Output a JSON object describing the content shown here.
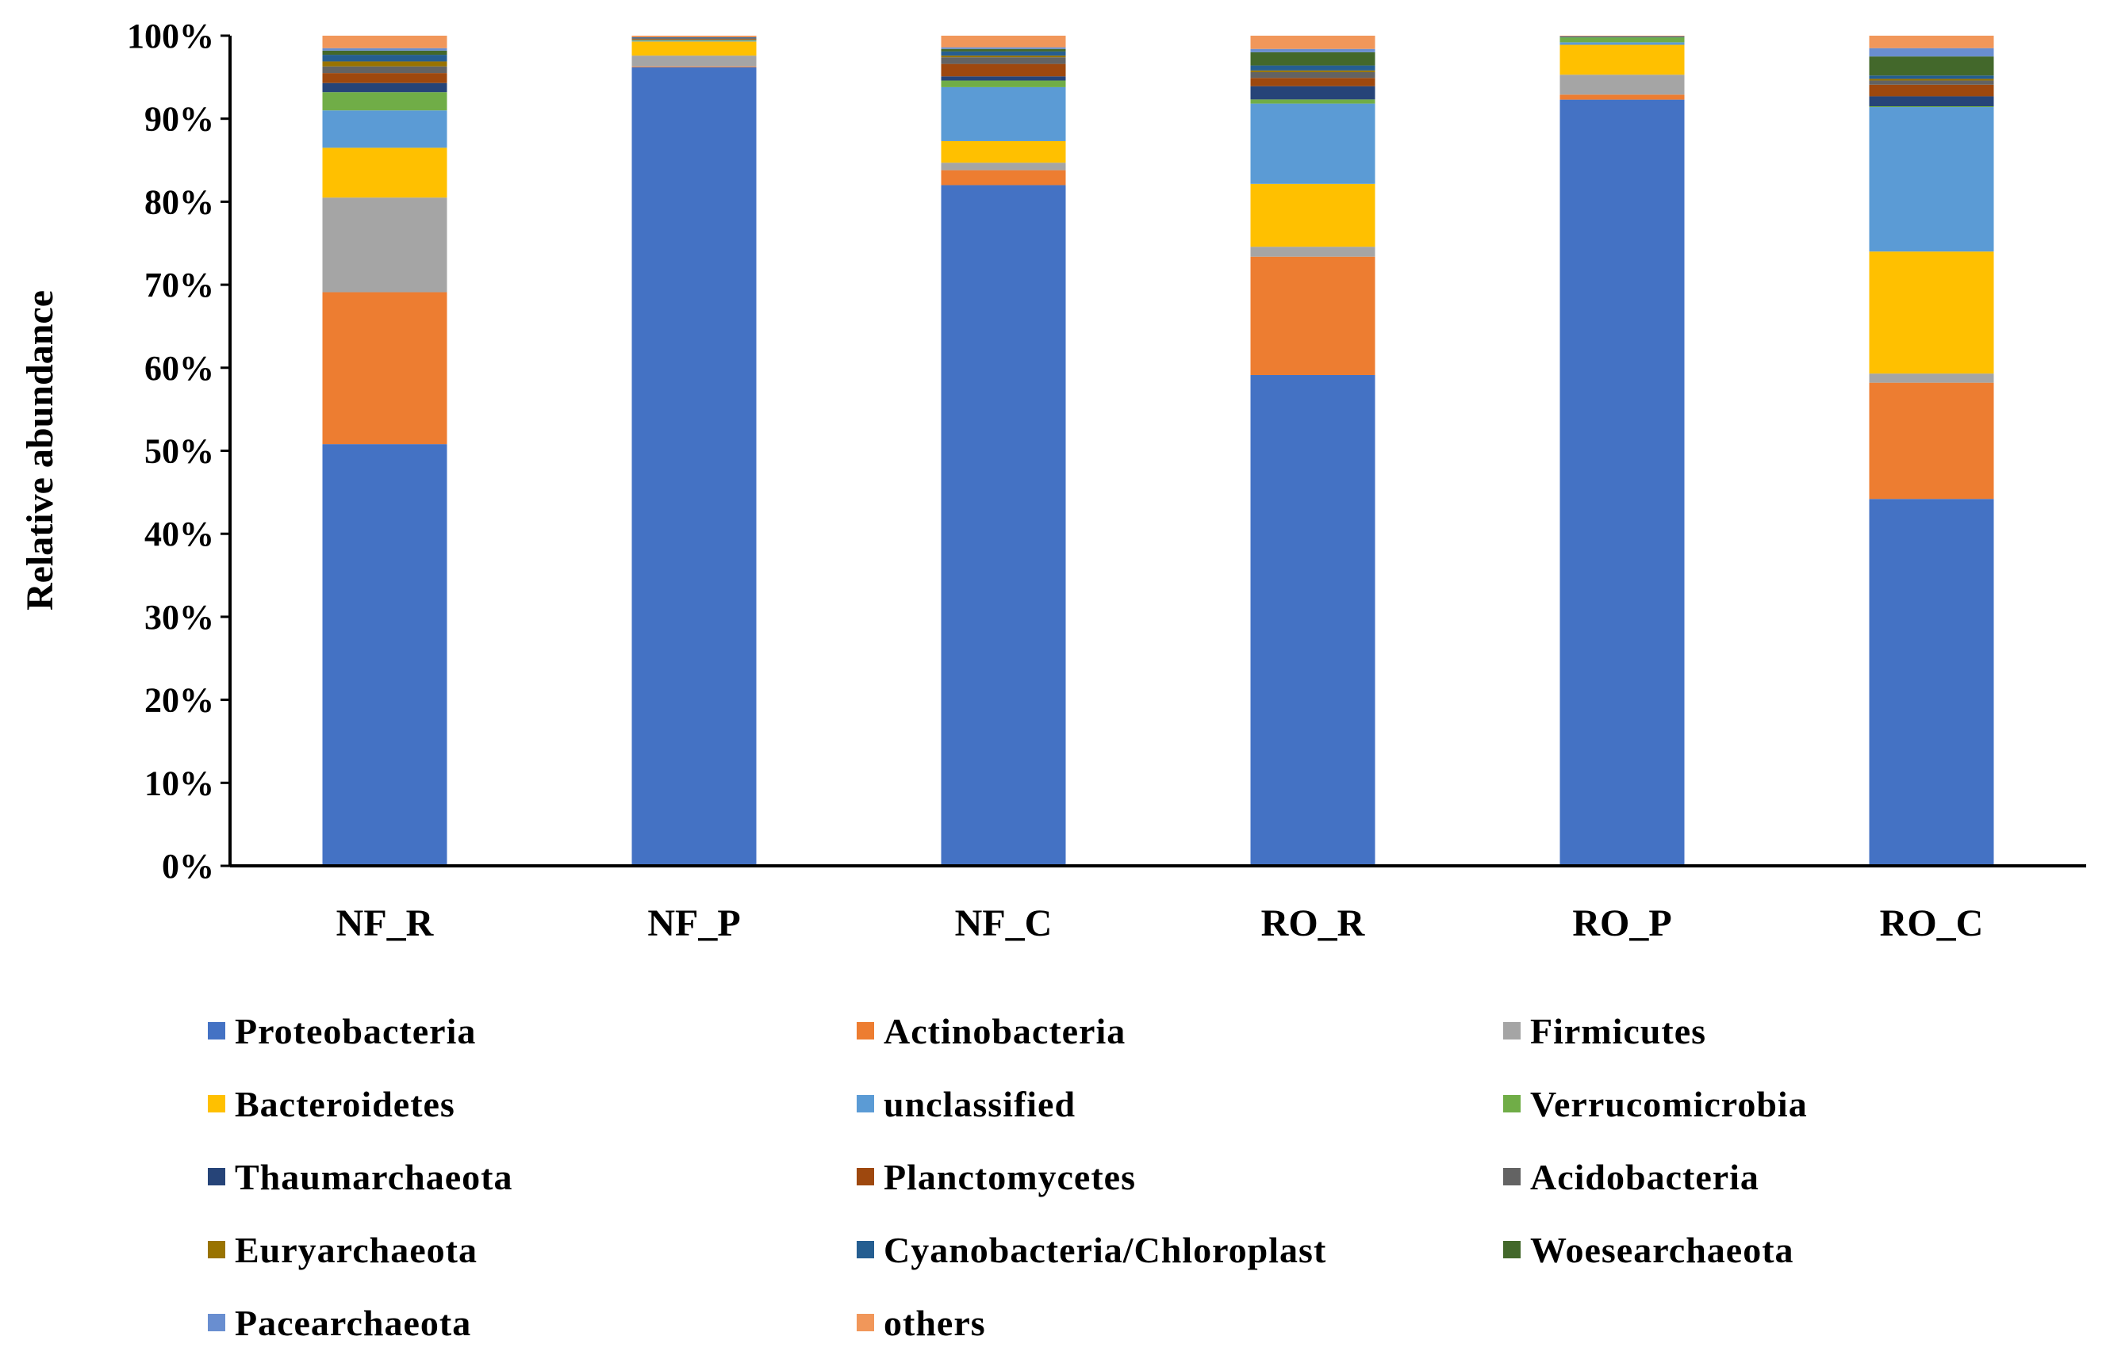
{
  "chart_data": {
    "type": "bar",
    "stacked": true,
    "percent": true,
    "title": "",
    "xlabel": "",
    "ylabel": "Relative abundance",
    "ylim": [
      0,
      100
    ],
    "yticks": [
      "0%",
      "10%",
      "20%",
      "30%",
      "40%",
      "50%",
      "60%",
      "70%",
      "80%",
      "90%",
      "100%"
    ],
    "categories": [
      "NF_R",
      "NF_P",
      "NF_C",
      "RO_R",
      "RO_P",
      "RO_C"
    ],
    "legend_position": "bottom",
    "series": [
      {
        "name": "Proteobacteria",
        "color": "#4472C4",
        "values": [
          50.8,
          96.2,
          82.0,
          59.3,
          92.3,
          44.2
        ]
      },
      {
        "name": "Actinobacteria",
        "color": "#ED7D31",
        "values": [
          18.3,
          0.1,
          1.8,
          14.3,
          0.6,
          14.0
        ]
      },
      {
        "name": "Firmicutes",
        "color": "#A5A5A5",
        "values": [
          11.4,
          1.3,
          0.9,
          1.2,
          2.4,
          1.1
        ]
      },
      {
        "name": "Bacteroidetes",
        "color": "#FFC000",
        "values": [
          6.0,
          1.7,
          2.6,
          7.6,
          3.6,
          14.7
        ]
      },
      {
        "name": "unclassified",
        "color": "#5B9BD5",
        "values": [
          4.5,
          0.1,
          6.5,
          9.7,
          0.3,
          17.4
        ]
      },
      {
        "name": "Verrucomicrobia",
        "color": "#70AD47",
        "values": [
          2.2,
          0.1,
          0.8,
          0.5,
          0.6,
          0.1
        ]
      },
      {
        "name": "Thaumarchaeota",
        "color": "#264478",
        "values": [
          1.1,
          0.0,
          0.5,
          1.6,
          0.0,
          1.2
        ]
      },
      {
        "name": "Planctomycetes",
        "color": "#9E480E",
        "values": [
          1.2,
          0.1,
          1.5,
          1.0,
          0.0,
          1.4
        ]
      },
      {
        "name": "Acidobacteria",
        "color": "#636363",
        "values": [
          0.8,
          0.1,
          0.8,
          0.7,
          0.0,
          0.5
        ]
      },
      {
        "name": "Euryarchaeota",
        "color": "#997300",
        "values": [
          0.6,
          0.0,
          0.2,
          0.2,
          0.0,
          0.2
        ]
      },
      {
        "name": "Cyanobacteria/Chloroplast",
        "color": "#255E91",
        "values": [
          0.8,
          0.1,
          0.5,
          0.6,
          0.1,
          0.4
        ]
      },
      {
        "name": "Woesearchaeota",
        "color": "#43682B",
        "values": [
          0.5,
          0.0,
          0.3,
          1.6,
          0.0,
          2.3
        ]
      },
      {
        "name": "Pacearchaeota",
        "color": "#698ED0",
        "values": [
          0.3,
          0.0,
          0.2,
          0.4,
          0.0,
          1.0
        ]
      },
      {
        "name": "others",
        "color": "#F1975A",
        "values": [
          1.5,
          0.2,
          1.4,
          1.6,
          0.1,
          1.5
        ]
      }
    ]
  }
}
